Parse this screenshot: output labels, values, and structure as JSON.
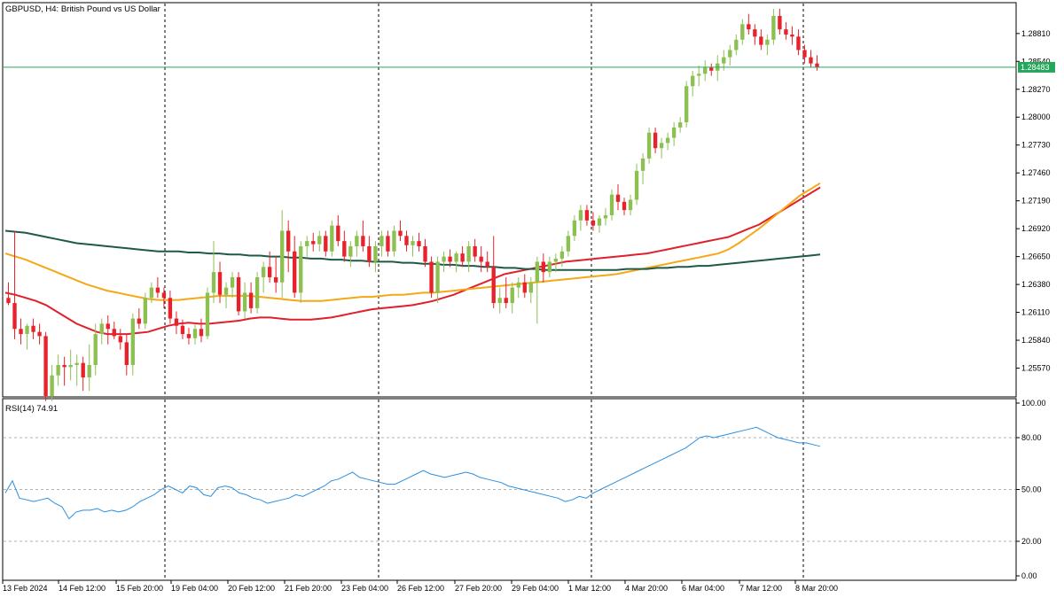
{
  "title": "GBPUSD, H4:  British Pound vs US Dollar",
  "current_price": "1.28483",
  "rsi_label": "RSI(14) 74.91",
  "colors": {
    "bull": "#8cc152",
    "bear": "#e8222b",
    "ma_fast": "#e0202a",
    "ma_mid": "#f5a816",
    "ma_slow": "#1f5a45",
    "rsi": "#2b8fe0",
    "price_line": "#26a65b"
  },
  "chart_data": [
    {
      "type": "candlestick",
      "symbol": "GBPUSD",
      "timeframe": "H4",
      "ylim": [
        1.253,
        1.291
      ],
      "y_ticks": [
        "1.28810",
        "1.28540",
        "1.28270",
        "1.28000",
        "1.27730",
        "1.27460",
        "1.27190",
        "1.26920",
        "1.26650",
        "1.26380",
        "1.26110",
        "1.25840",
        "1.25570"
      ],
      "x_ticks": [
        "13 Feb 2024",
        "14 Feb 12:00",
        "15 Feb 20:00",
        "19 Feb 04:00",
        "20 Feb 12:00",
        "21 Feb 20:00",
        "23 Feb 04:00",
        "26 Feb 12:00",
        "27 Feb 20:00",
        "29 Feb 04:00",
        "1 Mar 12:00",
        "4 Mar 20:00",
        "6 Mar 04:00",
        "7 Mar 12:00",
        "8 Mar 20:00"
      ],
      "ohlc": [
        [
          1.2625,
          1.264,
          1.2618,
          1.262
        ],
        [
          1.262,
          1.269,
          1.2585,
          1.2595
        ],
        [
          1.2595,
          1.2605,
          1.258,
          1.259
        ],
        [
          1.259,
          1.26,
          1.2575,
          1.2598
        ],
        [
          1.2598,
          1.2605,
          1.2585,
          1.2592
        ],
        [
          1.2592,
          1.26,
          1.258,
          1.2588
        ],
        [
          1.2588,
          1.2592,
          1.2525,
          1.253
        ],
        [
          1.253,
          1.256,
          1.2525,
          1.255
        ],
        [
          1.255,
          1.257,
          1.254,
          1.256
        ],
        [
          1.256,
          1.2568,
          1.254,
          1.2558
        ],
        [
          1.2558,
          1.2575,
          1.2545,
          1.256
        ],
        [
          1.256,
          1.257,
          1.254,
          1.2562
        ],
        [
          1.2562,
          1.2568,
          1.2535,
          1.2548
        ],
        [
          1.2548,
          1.258,
          1.2535,
          1.256
        ],
        [
          1.256,
          1.26,
          1.255,
          1.259
        ],
        [
          1.259,
          1.2605,
          1.258,
          1.26
        ],
        [
          1.26,
          1.2608,
          1.258,
          1.2595
        ],
        [
          1.2595,
          1.2602,
          1.2585,
          1.2588
        ],
        [
          1.2588,
          1.2595,
          1.2575,
          1.2582
        ],
        [
          1.2582,
          1.259,
          1.255,
          1.256
        ],
        [
          1.256,
          1.261,
          1.255,
          1.2605
        ],
        [
          1.2605,
          1.2615,
          1.2595,
          1.26
        ],
        [
          1.26,
          1.263,
          1.2595,
          1.2625
        ],
        [
          1.2625,
          1.264,
          1.262,
          1.2635
        ],
        [
          1.2635,
          1.2645,
          1.2625,
          1.263
        ],
        [
          1.263,
          1.2635,
          1.2615,
          1.2625
        ],
        [
          1.2625,
          1.2632,
          1.26,
          1.2605
        ],
        [
          1.2605,
          1.2612,
          1.259,
          1.2598
        ],
        [
          1.2598,
          1.2604,
          1.2585,
          1.259
        ],
        [
          1.259,
          1.2596,
          1.258,
          1.2586
        ],
        [
          1.2586,
          1.26,
          1.258,
          1.2595
        ],
        [
          1.2595,
          1.2605,
          1.2582,
          1.2588
        ],
        [
          1.2588,
          1.2635,
          1.2585,
          1.263
        ],
        [
          1.263,
          1.268,
          1.262,
          1.265
        ],
        [
          1.265,
          1.266,
          1.262,
          1.2628
        ],
        [
          1.2628,
          1.264,
          1.2615,
          1.2635
        ],
        [
          1.2635,
          1.265,
          1.2625,
          1.2645
        ],
        [
          1.2645,
          1.265,
          1.2608,
          1.2612
        ],
        [
          1.2612,
          1.264,
          1.2605,
          1.263
        ],
        [
          1.263,
          1.264,
          1.261,
          1.2615
        ],
        [
          1.2615,
          1.265,
          1.261,
          1.2645
        ],
        [
          1.2645,
          1.266,
          1.263,
          1.2655
        ],
        [
          1.2655,
          1.267,
          1.264,
          1.2645
        ],
        [
          1.2645,
          1.2665,
          1.263,
          1.264
        ],
        [
          1.264,
          1.271,
          1.2625,
          1.269
        ],
        [
          1.269,
          1.27,
          1.265,
          1.267
        ],
        [
          1.267,
          1.2685,
          1.2625,
          1.263
        ],
        [
          1.263,
          1.268,
          1.262,
          1.2675
        ],
        [
          1.2675,
          1.2685,
          1.2665,
          1.268
        ],
        [
          1.268,
          1.2688,
          1.267,
          1.2677
        ],
        [
          1.2677,
          1.269,
          1.267,
          1.2685
        ],
        [
          1.2685,
          1.269,
          1.2665,
          1.267
        ],
        [
          1.267,
          1.27,
          1.2665,
          1.2695
        ],
        [
          1.2695,
          1.2705,
          1.2675,
          1.268
        ],
        [
          1.268,
          1.269,
          1.266,
          1.2665
        ],
        [
          1.2665,
          1.268,
          1.2655,
          1.2675
        ],
        [
          1.2675,
          1.269,
          1.2665,
          1.2685
        ],
        [
          1.2685,
          1.27,
          1.267,
          1.2675
        ],
        [
          1.2675,
          1.2685,
          1.2655,
          1.266
        ],
        [
          1.266,
          1.268,
          1.265,
          1.2675
        ],
        [
          1.2675,
          1.269,
          1.2665,
          1.2685
        ],
        [
          1.2685,
          1.269,
          1.2665,
          1.267
        ],
        [
          1.267,
          1.2695,
          1.2665,
          1.269
        ],
        [
          1.269,
          1.27,
          1.268,
          1.2685
        ],
        [
          1.2685,
          1.269,
          1.267,
          1.2676
        ],
        [
          1.2676,
          1.2685,
          1.2665,
          1.268
        ],
        [
          1.268,
          1.2688,
          1.267,
          1.2675
        ],
        [
          1.2675,
          1.2682,
          1.2655,
          1.266
        ],
        [
          1.266,
          1.2665,
          1.2625,
          1.263
        ],
        [
          1.263,
          1.2665,
          1.262,
          1.266
        ],
        [
          1.266,
          1.267,
          1.265,
          1.2665
        ],
        [
          1.2665,
          1.2672,
          1.2655,
          1.266
        ],
        [
          1.266,
          1.267,
          1.265,
          1.2668
        ],
        [
          1.2668,
          1.2675,
          1.2655,
          1.266
        ],
        [
          1.266,
          1.268,
          1.265,
          1.2675
        ],
        [
          1.2675,
          1.2682,
          1.266,
          1.2665
        ],
        [
          1.2665,
          1.2675,
          1.265,
          1.266
        ],
        [
          1.266,
          1.267,
          1.265,
          1.2655
        ],
        [
          1.2655,
          1.2685,
          1.2615,
          1.262
        ],
        [
          1.262,
          1.2635,
          1.261,
          1.2625
        ],
        [
          1.2625,
          1.2645,
          1.2615,
          1.262
        ],
        [
          1.262,
          1.264,
          1.261,
          1.2635
        ],
        [
          1.2635,
          1.2645,
          1.2625,
          1.264
        ],
        [
          1.264,
          1.2648,
          1.2625,
          1.263
        ],
        [
          1.263,
          1.2645,
          1.262,
          1.264
        ],
        [
          1.264,
          1.2665,
          1.26,
          1.266
        ],
        [
          1.266,
          1.2668,
          1.264,
          1.265
        ],
        [
          1.265,
          1.2665,
          1.2645,
          1.266
        ],
        [
          1.266,
          1.2668,
          1.265,
          1.2663
        ],
        [
          1.2663,
          1.2675,
          1.2655,
          1.267
        ],
        [
          1.267,
          1.269,
          1.2665,
          1.2685
        ],
        [
          1.2685,
          1.2705,
          1.268,
          1.27
        ],
        [
          1.27,
          1.2715,
          1.269,
          1.271
        ],
        [
          1.271,
          1.2715,
          1.2695,
          1.27
        ],
        [
          1.27,
          1.2708,
          1.269,
          1.2695
        ],
        [
          1.2695,
          1.2705,
          1.2688,
          1.2702
        ],
        [
          1.2702,
          1.2712,
          1.2695,
          1.2705
        ],
        [
          1.2705,
          1.273,
          1.27,
          1.2725
        ],
        [
          1.2725,
          1.2735,
          1.271,
          1.2718
        ],
        [
          1.2718,
          1.2722,
          1.2705,
          1.271
        ],
        [
          1.271,
          1.2725,
          1.2705,
          1.272
        ],
        [
          1.272,
          1.2755,
          1.2715,
          1.2748
        ],
        [
          1.2748,
          1.2765,
          1.2735,
          1.276
        ],
        [
          1.276,
          1.279,
          1.2755,
          1.2785
        ],
        [
          1.2785,
          1.279,
          1.2765,
          1.277
        ],
        [
          1.277,
          1.278,
          1.276,
          1.2775
        ],
        [
          1.2775,
          1.2785,
          1.2768,
          1.278
        ],
        [
          1.278,
          1.2795,
          1.2772,
          1.279
        ],
        [
          1.279,
          1.28,
          1.2785,
          1.2795
        ],
        [
          1.2795,
          1.2835,
          1.279,
          1.283
        ],
        [
          1.283,
          1.2845,
          1.282,
          1.284
        ],
        [
          1.284,
          1.285,
          1.283,
          1.2842
        ],
        [
          1.2842,
          1.2855,
          1.2835,
          1.2848
        ],
        [
          1.2848,
          1.2852,
          1.284,
          1.2845
        ],
        [
          1.2845,
          1.286,
          1.2835,
          1.2852
        ],
        [
          1.2852,
          1.2865,
          1.2845,
          1.2858
        ],
        [
          1.2858,
          1.287,
          1.285,
          1.2865
        ],
        [
          1.2865,
          1.288,
          1.286,
          1.2875
        ],
        [
          1.2875,
          1.2895,
          1.287,
          1.289
        ],
        [
          1.289,
          1.29,
          1.288,
          1.2885
        ],
        [
          1.2885,
          1.289,
          1.287,
          1.2878
        ],
        [
          1.2878,
          1.2885,
          1.2865,
          1.287
        ],
        [
          1.287,
          1.288,
          1.286,
          1.2875
        ],
        [
          1.2875,
          1.2905,
          1.287,
          1.2898
        ],
        [
          1.2898,
          1.2905,
          1.288,
          1.2885
        ],
        [
          1.2885,
          1.2892,
          1.2875,
          1.288
        ],
        [
          1.288,
          1.2888,
          1.287,
          1.2878
        ],
        [
          1.2878,
          1.2885,
          1.286,
          1.2865
        ],
        [
          1.2865,
          1.287,
          1.2852,
          1.2858
        ],
        [
          1.2858,
          1.2865,
          1.2848,
          1.2852
        ],
        [
          1.2852,
          1.286,
          1.2845,
          1.2848
        ]
      ],
      "ma": [
        {
          "color_key": "ma_fast",
          "values": [
            1.263,
            1.2628,
            1.2625,
            1.2622,
            1.2618,
            1.2612,
            1.2606,
            1.26,
            1.2596,
            1.2592,
            1.259,
            1.259,
            1.259,
            1.2591,
            1.2592,
            1.2595,
            1.2598,
            1.26,
            1.2601,
            1.26,
            1.26,
            1.2601,
            1.2602,
            1.2603,
            1.2605,
            1.2606,
            1.2606,
            1.2605,
            1.2604,
            1.2604,
            1.2604,
            1.2605,
            1.2606,
            1.2608,
            1.261,
            1.2612,
            1.2614,
            1.2615,
            1.2616,
            1.2617,
            1.2618,
            1.262,
            1.2622,
            1.2625,
            1.2628,
            1.2632,
            1.2636,
            1.264,
            1.2644,
            1.2648,
            1.265,
            1.2652,
            1.2654,
            1.2656,
            1.2658,
            1.266,
            1.2661,
            1.2662,
            1.2663,
            1.2664,
            1.2665,
            1.2666,
            1.2667,
            1.2668,
            1.267,
            1.2672,
            1.2674,
            1.2676,
            1.2678,
            1.268,
            1.2682,
            1.2684,
            1.2688,
            1.2692,
            1.2696,
            1.2702,
            1.2708,
            1.2714,
            1.272,
            1.2726,
            1.2732
          ]
        },
        {
          "color_key": "ma_mid",
          "values": [
            1.2668,
            1.2665,
            1.2662,
            1.2658,
            1.2654,
            1.265,
            1.2646,
            1.2642,
            1.2638,
            1.2635,
            1.2632,
            1.263,
            1.2628,
            1.2626,
            1.2624,
            1.2623,
            1.2623,
            1.2623,
            1.2624,
            1.2625,
            1.2626,
            1.2627,
            1.2627,
            1.2627,
            1.2627,
            1.2626,
            1.2625,
            1.2624,
            1.2623,
            1.2622,
            1.2622,
            1.2622,
            1.2623,
            1.2624,
            1.2625,
            1.2626,
            1.2626,
            1.2627,
            1.2628,
            1.2628,
            1.2629,
            1.263,
            1.263,
            1.2631,
            1.2632,
            1.2633,
            1.2634,
            1.2635,
            1.2636,
            1.2637,
            1.2638,
            1.2639,
            1.264,
            1.2641,
            1.2642,
            1.2643,
            1.2644,
            1.2645,
            1.2646,
            1.2647,
            1.2648,
            1.265,
            1.2652,
            1.2654,
            1.2656,
            1.2658,
            1.266,
            1.2662,
            1.2664,
            1.2666,
            1.2668,
            1.2672,
            1.2678,
            1.2685,
            1.2692,
            1.27,
            1.2708,
            1.2716,
            1.2724,
            1.273,
            1.2736
          ]
        },
        {
          "color_key": "ma_slow",
          "values": [
            1.269,
            1.2689,
            1.2688,
            1.2686,
            1.2684,
            1.2682,
            1.268,
            1.2678,
            1.2677,
            1.2676,
            1.2675,
            1.2674,
            1.2673,
            1.2672,
            1.2671,
            1.267,
            1.267,
            1.267,
            1.2669,
            1.2669,
            1.2668,
            1.2668,
            1.2667,
            1.2667,
            1.2666,
            1.2666,
            1.2665,
            1.2665,
            1.2664,
            1.2664,
            1.2663,
            1.2663,
            1.2662,
            1.2662,
            1.2661,
            1.2661,
            1.266,
            1.266,
            1.266,
            1.2659,
            1.2659,
            1.2658,
            1.2658,
            1.2657,
            1.2657,
            1.2656,
            1.2656,
            1.2655,
            1.2655,
            1.2654,
            1.2654,
            1.2653,
            1.2653,
            1.2652,
            1.2652,
            1.2652,
            1.2652,
            1.2652,
            1.2652,
            1.2652,
            1.2652,
            1.2653,
            1.2653,
            1.2653,
            1.2654,
            1.2654,
            1.2655,
            1.2655,
            1.2656,
            1.2656,
            1.2657,
            1.2658,
            1.2659,
            1.266,
            1.2661,
            1.2662,
            1.2663,
            1.2664,
            1.2665,
            1.2666,
            1.2667
          ]
        }
      ]
    },
    {
      "type": "line",
      "name": "RSI(14)",
      "ylim": [
        0,
        100
      ],
      "y_ticks": [
        "100.00",
        "80.00",
        "50.00",
        "20.00",
        "0.00"
      ],
      "levels": [
        80,
        50,
        20
      ],
      "values": [
        48,
        55,
        45,
        44,
        43,
        44,
        45,
        42,
        40,
        33,
        37,
        38,
        38,
        39,
        37,
        38,
        37,
        38,
        40,
        43,
        45,
        47,
        50,
        52,
        50,
        48,
        52,
        51,
        47,
        46,
        51,
        52,
        51,
        48,
        47,
        45,
        44,
        42,
        43,
        44,
        45,
        47,
        46,
        48,
        50,
        52,
        55,
        56,
        58,
        60,
        57,
        56,
        55,
        54,
        53,
        53,
        55,
        57,
        59,
        61,
        59,
        58,
        57,
        58,
        59,
        60,
        59,
        57,
        56,
        55,
        54,
        52,
        51,
        50,
        49,
        48,
        47,
        46,
        45,
        43,
        44,
        46,
        45,
        48,
        50,
        52,
        54,
        56,
        58,
        60,
        62,
        64,
        66,
        68,
        70,
        72,
        74,
        77,
        80,
        81,
        80,
        81,
        82,
        83,
        84,
        85,
        86,
        84,
        82,
        80,
        79,
        78,
        77,
        77,
        76,
        75
      ]
    }
  ]
}
